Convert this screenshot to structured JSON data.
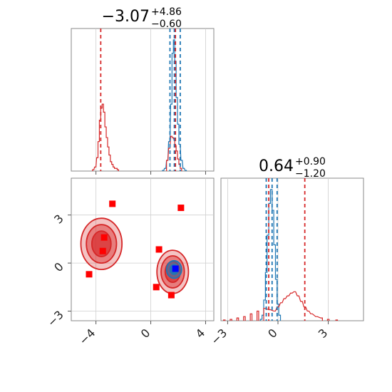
{
  "colors": {
    "model_a": "#1f77b4",
    "model_b": "#d62728",
    "marker": "#ff0000",
    "truth_marker": "#0000ff"
  },
  "titles": {
    "param1": {
      "median": "−3.07",
      "upper": "+4.86",
      "lower": "−0.60"
    },
    "param2": {
      "median": "0.64",
      "upper": "+0.90",
      "lower": "−1.20"
    }
  },
  "chart_data": [
    {
      "panel": "param1-marginal",
      "type": "histogram",
      "xlim": [
        -5.8,
        4.6
      ],
      "grid": true,
      "series": [
        {
          "color": "model_a",
          "bins": [
            [
              0.9,
              0.005
            ],
            [
              1.05,
              0.02
            ],
            [
              1.2,
              0.08
            ],
            [
              1.35,
              0.22
            ],
            [
              1.5,
              0.5
            ],
            [
              1.6,
              0.88
            ],
            [
              1.7,
              0.98
            ],
            [
              1.8,
              0.82
            ],
            [
              1.9,
              0.55
            ],
            [
              2.0,
              0.35
            ],
            [
              2.1,
              0.2
            ],
            [
              2.25,
              0.08
            ],
            [
              2.4,
              0.02
            ],
            [
              2.55,
              0.005
            ]
          ]
        },
        {
          "color": "model_b",
          "bins": [
            [
              -4.2,
              0.01
            ],
            [
              -4.05,
              0.03
            ],
            [
              -3.9,
              0.1
            ],
            [
              -3.8,
              0.22
            ],
            [
              -3.7,
              0.38
            ],
            [
              -3.6,
              0.47
            ],
            [
              -3.5,
              0.5
            ],
            [
              -3.4,
              0.44
            ],
            [
              -3.3,
              0.33
            ],
            [
              -3.2,
              0.25
            ],
            [
              -3.1,
              0.18
            ],
            [
              -3.0,
              0.12
            ],
            [
              -2.9,
              0.07
            ],
            [
              -2.8,
              0.05
            ],
            [
              -2.7,
              0.03
            ],
            [
              -2.6,
              0.02
            ],
            [
              -2.5,
              0.02
            ],
            [
              -2.4,
              0.01
            ],
            [
              1.2,
              0.08
            ],
            [
              1.35,
              0.17
            ],
            [
              1.5,
              0.26
            ],
            [
              1.6,
              0.25
            ],
            [
              1.7,
              0.24
            ],
            [
              1.8,
              0.19
            ],
            [
              1.9,
              0.15
            ],
            [
              2.0,
              0.09
            ],
            [
              2.1,
              0.05
            ],
            [
              2.2,
              0.02
            ]
          ]
        }
      ],
      "lines": [
        {
          "x": 1.4,
          "color": "model_a"
        },
        {
          "x": 1.72,
          "color": "model_a"
        },
        {
          "x": 2.15,
          "color": "model_a"
        },
        {
          "x": -3.65,
          "color": "model_b"
        },
        {
          "x": 1.8,
          "color": "model_b"
        }
      ],
      "xticks": [
        -4,
        0,
        4
      ]
    },
    {
      "panel": "param2-marginal",
      "type": "histogram",
      "xlim": [
        -3.4,
        5.1
      ],
      "grid": true,
      "series": [
        {
          "color": "model_a",
          "bins": [
            [
              -1.0,
              0.01
            ],
            [
              -0.9,
              0.04
            ],
            [
              -0.8,
              0.15
            ],
            [
              -0.7,
              0.35
            ],
            [
              -0.6,
              0.62
            ],
            [
              -0.5,
              0.85
            ],
            [
              -0.4,
              0.95
            ],
            [
              -0.3,
              0.8
            ],
            [
              -0.2,
              0.55
            ],
            [
              -0.1,
              0.3
            ],
            [
              0.0,
              0.12
            ],
            [
              0.1,
              0.04
            ]
          ]
        },
        {
          "color": "model_b",
          "bins": [
            [
              -3.2,
              0.005
            ],
            [
              -2.8,
              0.01
            ],
            [
              -2.4,
              0.02
            ],
            [
              -2.0,
              0.03
            ],
            [
              -1.6,
              0.05
            ],
            [
              -1.2,
              0.07
            ],
            [
              -0.8,
              0.09
            ],
            [
              -0.5,
              0.08
            ],
            [
              -0.2,
              0.07
            ],
            [
              0.0,
              0.1
            ],
            [
              0.2,
              0.13
            ],
            [
              0.4,
              0.16
            ],
            [
              0.6,
              0.18
            ],
            [
              0.8,
              0.2
            ],
            [
              1.0,
              0.21
            ],
            [
              1.2,
              0.18
            ],
            [
              1.4,
              0.14
            ],
            [
              1.6,
              0.1
            ],
            [
              1.8,
              0.07
            ],
            [
              2.0,
              0.05
            ],
            [
              2.3,
              0.03
            ],
            [
              2.6,
              0.02
            ],
            [
              3.0,
              0.01
            ],
            [
              3.5,
              0.005
            ]
          ]
        }
      ],
      "lines": [
        {
          "x": -0.7,
          "color": "model_a"
        },
        {
          "x": -0.35,
          "color": "model_a"
        },
        {
          "x": -0.05,
          "color": "model_a"
        },
        {
          "x": -0.55,
          "color": "model_b"
        },
        {
          "x": 1.6,
          "color": "model_b"
        }
      ],
      "xticks": [
        -3,
        0,
        3
      ]
    },
    {
      "panel": "param1-vs-param2",
      "type": "scatter",
      "xlim": [
        -5.8,
        4.6
      ],
      "ylim": [
        -3.6,
        5.3
      ],
      "grid": true,
      "xticks": [
        -4,
        0,
        4
      ],
      "yticks": [
        -3,
        0,
        3
      ],
      "contours": [
        {
          "color": "model_b",
          "cx": -3.6,
          "cy": 1.2,
          "levels": [
            [
              1.5,
              1.6
            ],
            [
              1.1,
              1.2
            ],
            [
              0.7,
              0.8
            ]
          ]
        },
        {
          "color": "model_b",
          "cx": 1.6,
          "cy": -0.55,
          "levels": [
            [
              1.15,
              1.35
            ],
            [
              0.85,
              1.0
            ],
            [
              0.55,
              0.65
            ]
          ]
        },
        {
          "color": "model_a",
          "cx": 1.7,
          "cy": -0.4,
          "levels": [
            [
              0.55,
              0.55
            ],
            [
              0.3,
              0.3
            ]
          ]
        }
      ],
      "points": [
        {
          "x": -2.8,
          "y": 3.7,
          "color": "marker"
        },
        {
          "x": 2.2,
          "y": 3.45,
          "color": "marker"
        },
        {
          "x": -3.4,
          "y": 1.6,
          "color": "marker"
        },
        {
          "x": -3.5,
          "y": 0.75,
          "color": "marker"
        },
        {
          "x": 0.6,
          "y": 0.85,
          "color": "marker"
        },
        {
          "x": -4.5,
          "y": -0.7,
          "color": "marker"
        },
        {
          "x": 0.4,
          "y": -1.5,
          "color": "marker"
        },
        {
          "x": 1.5,
          "y": -2.0,
          "color": "marker"
        },
        {
          "x": 1.8,
          "y": -0.35,
          "color": "truth_marker"
        }
      ]
    }
  ]
}
